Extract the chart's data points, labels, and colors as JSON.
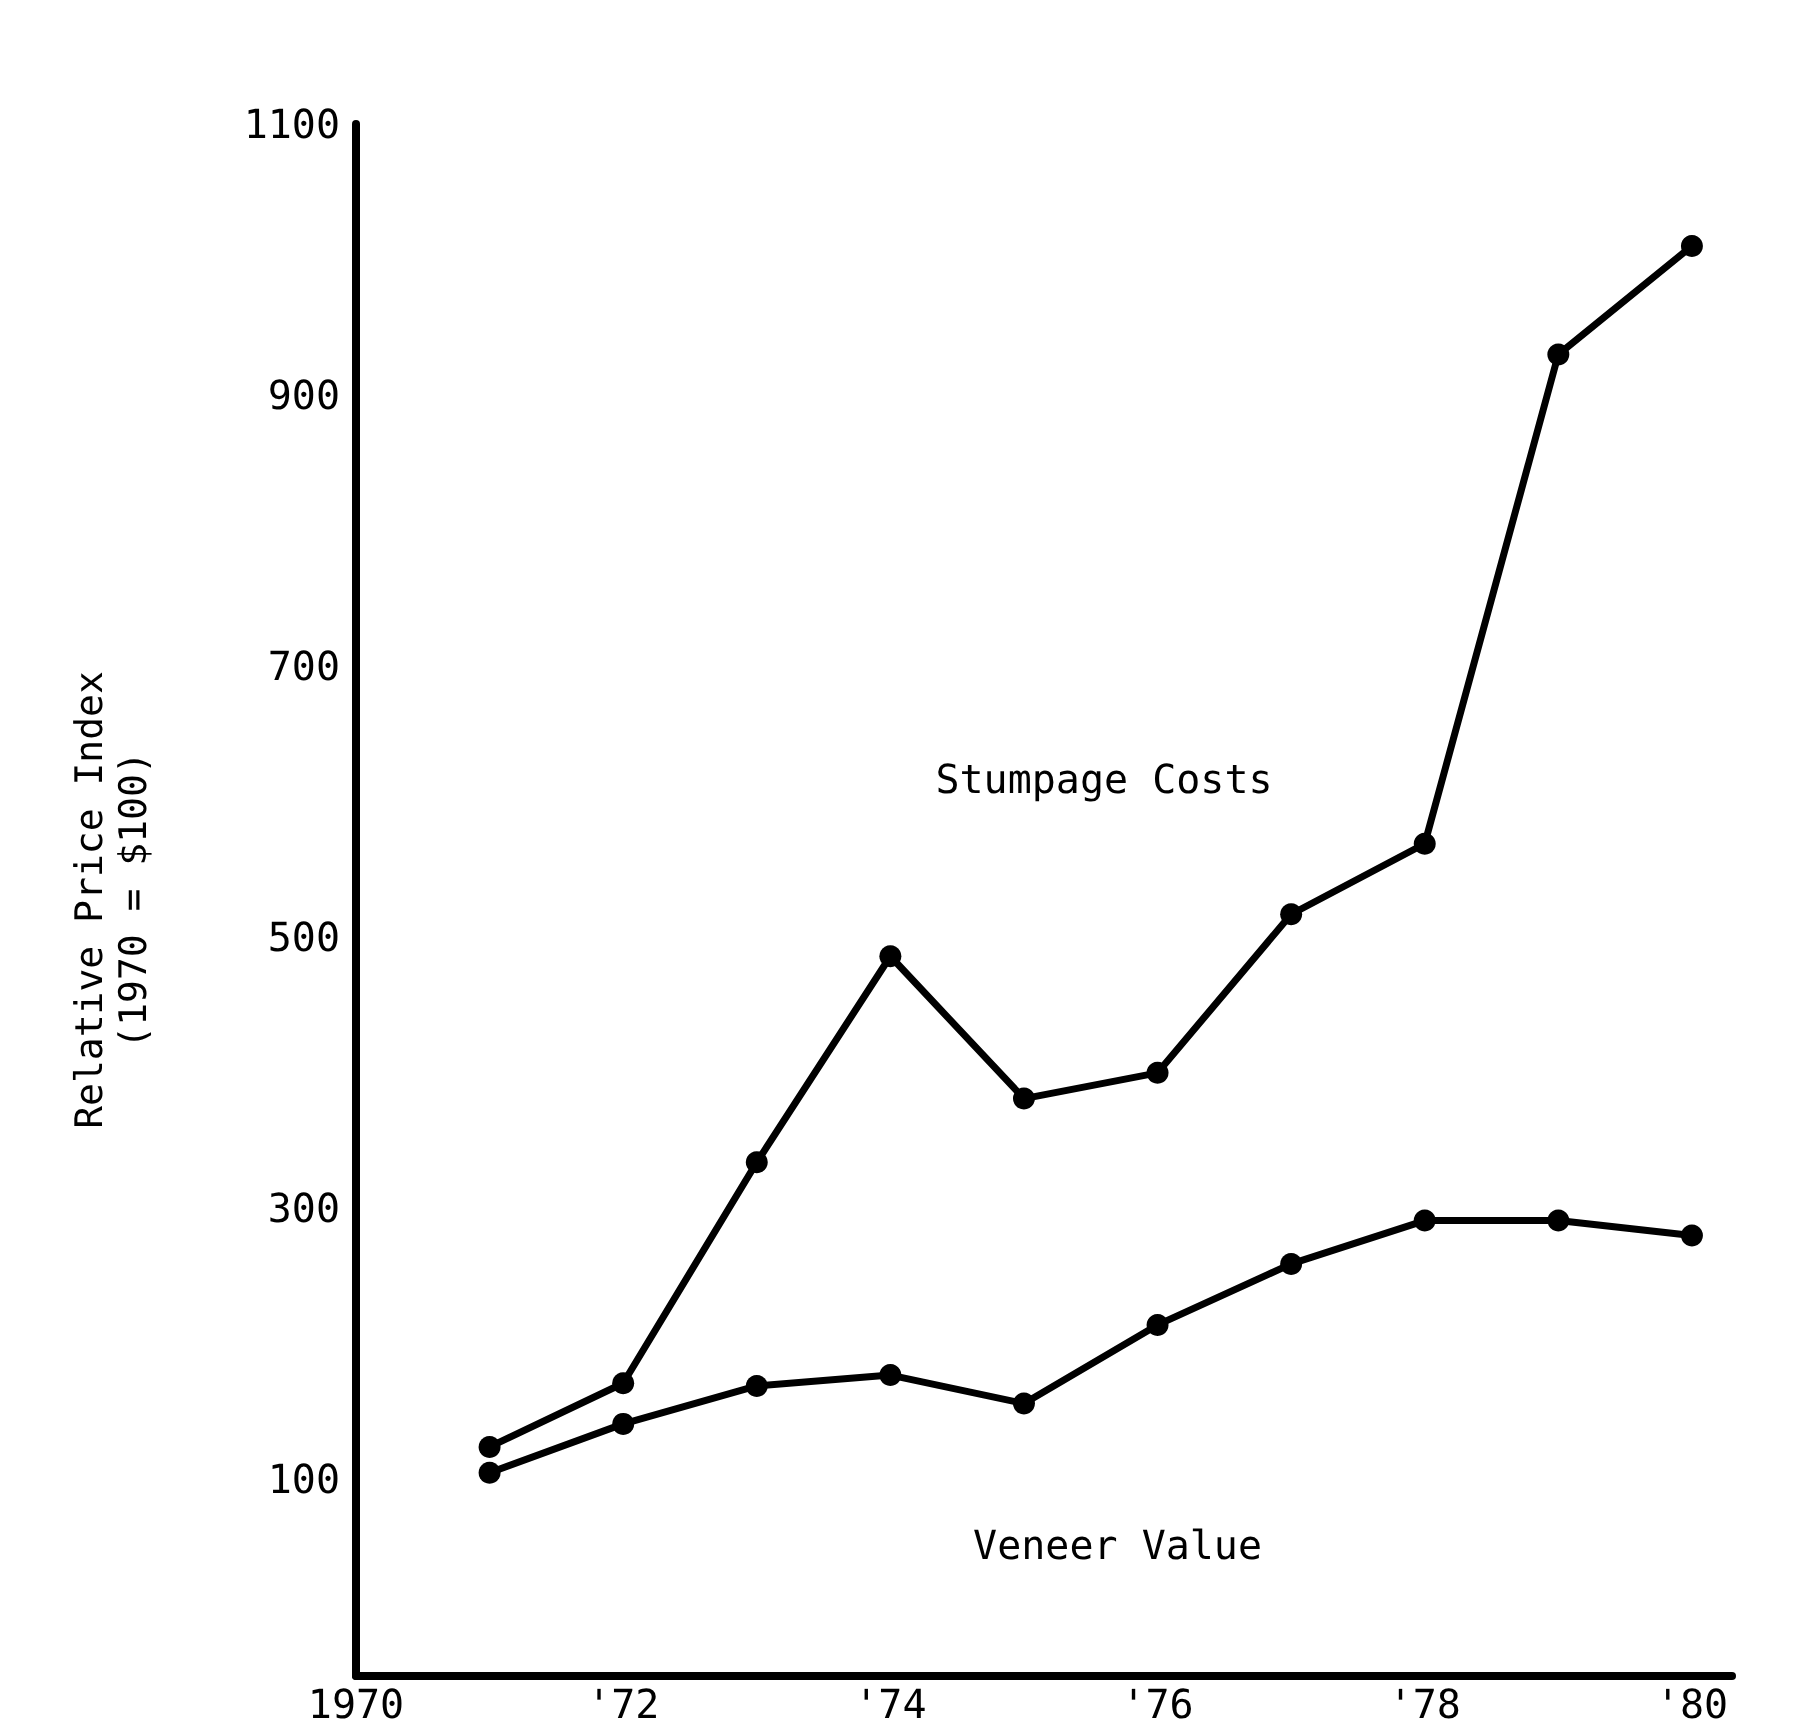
{
  "chart_data": {
    "type": "line",
    "ylabel": "Relative Price Index\n(1970 = $100)",
    "x": [
      1971,
      1972,
      1973,
      1974,
      1975,
      1976,
      1977,
      1978,
      1979,
      1980
    ],
    "series": [
      {
        "name": "Stumpage Costs",
        "color": "#000000",
        "values": [
          124,
          171,
          334,
          486,
          381,
          400,
          517,
          569,
          930,
          1010
        ]
      },
      {
        "name": "Veneer Value",
        "color": "#000000",
        "values": [
          105,
          141,
          169,
          177,
          156,
          214,
          259,
          291,
          291,
          280
        ]
      }
    ],
    "xlim": [
      1970,
      1980.3
    ],
    "xticks": [
      1970,
      {
        "value": 1972,
        "label": "'72"
      },
      {
        "value": 1974,
        "label": "'74"
      },
      {
        "value": 1976,
        "label": "'76"
      },
      {
        "value": 1978,
        "label": "'78"
      },
      {
        "value": 1980,
        "label": "'80"
      }
    ],
    "ylim": [
      -45,
      1100
    ],
    "yticks": [
      100,
      300,
      500,
      700,
      900,
      1100
    ],
    "grid": false,
    "marker": "circle",
    "line_style": "solid"
  }
}
